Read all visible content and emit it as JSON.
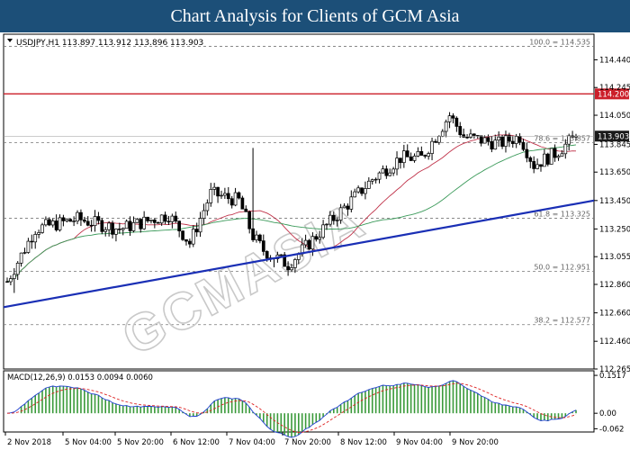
{
  "header": {
    "title": "Chart Analysis for Clients of GCM Asia"
  },
  "chart_data": {
    "type": "candlestick",
    "symbol_info": "USDJPY,H1  113.897 113.912 113.896 113.903",
    "price_ticks": [
      "114.440",
      "114.245",
      "114.050",
      "113.845",
      "113.650",
      "113.450",
      "113.250",
      "113.055",
      "112.860",
      "112.660",
      "112.460",
      "112.265"
    ],
    "ylim": [
      112.265,
      114.62
    ],
    "last_price_label": "113.903",
    "last_price": 113.903,
    "resistance": {
      "label": "114.200",
      "value": 114.2,
      "color": "#cc1f2a"
    },
    "fib_levels": [
      {
        "label": "100.0 = 114.535",
        "value": 114.535
      },
      {
        "label": "78.6 = 113.857",
        "value": 113.857
      },
      {
        "label": "61.8 = 113.325",
        "value": 113.325
      },
      {
        "label": "50.0 = 112.951",
        "value": 112.951
      },
      {
        "label": "38.2 = 112.577",
        "value": 112.577
      }
    ],
    "trendline": {
      "color": "#1a2fb5",
      "start": 112.7,
      "end": 113.45
    },
    "x_labels": [
      "2 Nov 2018",
      "5 Nov 04:00",
      "5 Nov 20:00",
      "6 Nov 12:00",
      "7 Nov 04:00",
      "7 Nov 20:00",
      "8 Nov 12:00",
      "9 Nov 04:00",
      "9 Nov 20:00"
    ],
    "macd": {
      "label": "MACD(12,26,9) 0.0153 0.0094 0.0060",
      "ticks": [
        "0.1517",
        "0.00",
        "-0.062"
      ],
      "ylim": [
        -0.075,
        0.17
      ]
    },
    "watermark": "GCMASIA"
  }
}
